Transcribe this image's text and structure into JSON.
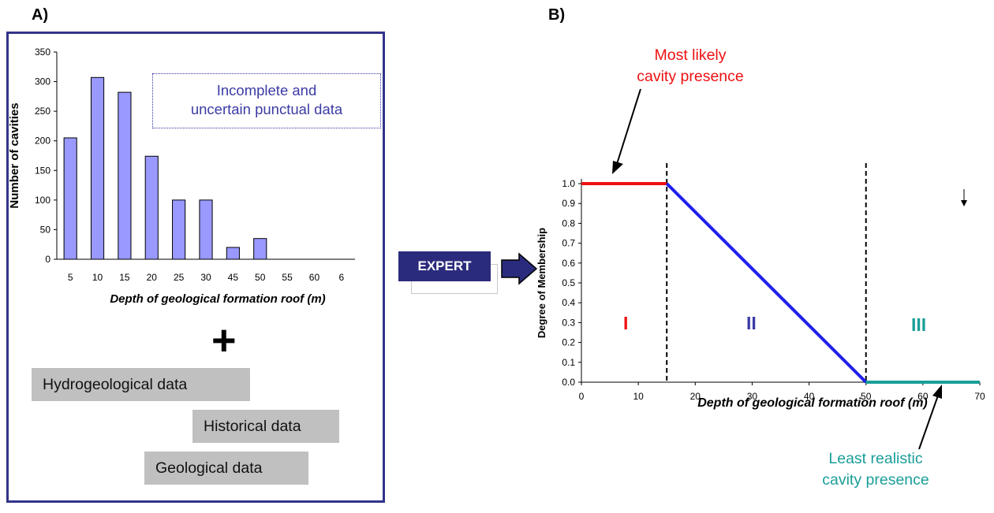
{
  "panel_a": {
    "label": "A)",
    "note": [
      "Incomplete and",
      "uncertain punctual data"
    ],
    "plus": "+",
    "data_boxes": [
      "Hydrogeological data",
      "Historical data",
      "Geological data"
    ]
  },
  "expert_label": "EXPERT",
  "panel_b": {
    "label": "B)",
    "top_annotation": [
      "Most likely",
      "cavity presence"
    ],
    "bottom_annotation": [
      "Least realistic",
      "cavity presence"
    ],
    "zones": [
      "I",
      "II",
      "III"
    ]
  },
  "colors": {
    "frame": "#33338a",
    "bar_fill": "#9999ff",
    "note_text": "#3b3ba6",
    "red": "#ee1111",
    "blue": "#1f1fee",
    "teal": "#1a9e99",
    "expert_box": "#2b2b7d"
  },
  "chart_data": [
    {
      "type": "bar",
      "categories": [
        "5",
        "10",
        "15",
        "20",
        "25",
        "30",
        "45",
        "50",
        "55",
        "60",
        "6"
      ],
      "values": [
        205,
        307,
        282,
        174,
        100,
        100,
        20,
        35,
        0,
        0,
        0
      ],
      "xlabel": "Depth of geological formation roof (m)",
      "ylabel": "Number of cavities",
      "ylim": [
        0,
        350
      ],
      "yticks": [
        "0",
        "50",
        "100",
        "150",
        "200",
        "250",
        "300",
        "350"
      ],
      "grid": false
    },
    {
      "type": "line",
      "xlabel": "Depth of geological formation roof (m)",
      "ylabel": "Degree of Membership",
      "xlim": [
        0,
        70
      ],
      "ylim": [
        0,
        1
      ],
      "xticks": [
        "0",
        "10",
        "20",
        "30",
        "40",
        "50",
        "60",
        "70"
      ],
      "yticks": [
        "0.0",
        "0.1",
        "0.2",
        "0.3",
        "0.4",
        "0.5",
        "0.6",
        "0.7",
        "0.8",
        "0.9",
        "1.0"
      ],
      "series": [
        {
          "color": "red",
          "x": [
            0,
            15
          ],
          "y": [
            1.0,
            1.0
          ]
        },
        {
          "color": "blue",
          "x": [
            15,
            50
          ],
          "y": [
            1.0,
            0.0
          ]
        },
        {
          "color": "teal",
          "x": [
            50,
            70
          ],
          "y": [
            0.0,
            0.0
          ]
        }
      ],
      "vlines": [
        15,
        50
      ],
      "grid": false
    }
  ]
}
